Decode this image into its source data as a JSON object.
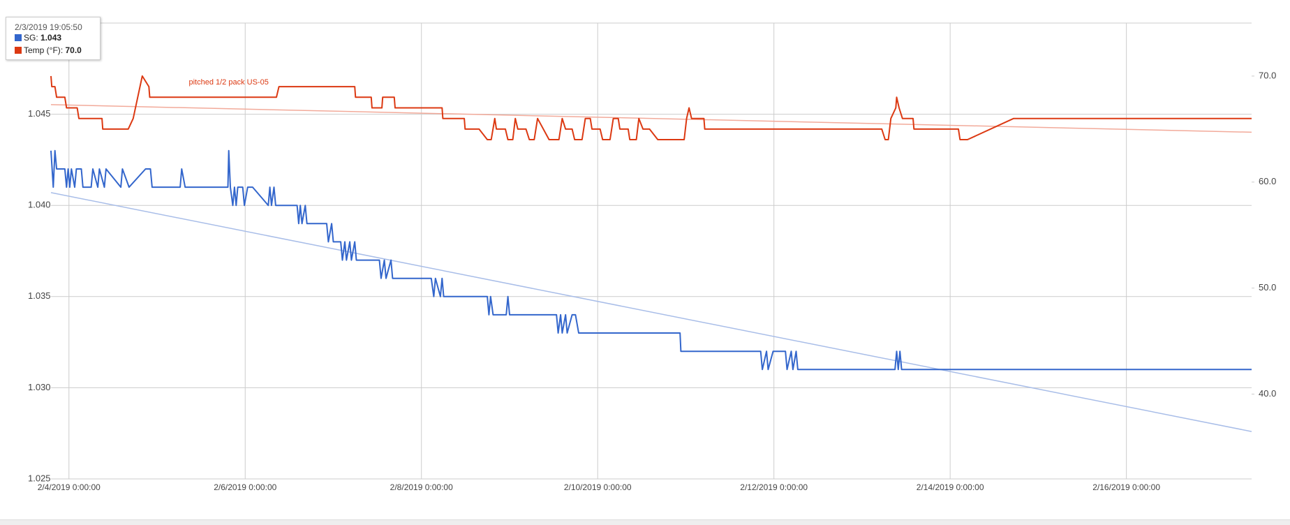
{
  "chart_data": {
    "type": "line",
    "xlim": [
      "2019-02-03T19:06",
      "2019-02-17T10:06"
    ],
    "xticks": [
      {
        "value": "2019-02-04T00:00",
        "label": "2/4/2019 0:00:00"
      },
      {
        "value": "2019-02-06T00:00",
        "label": "2/6/2019 0:00:00"
      },
      {
        "value": "2019-02-08T00:00",
        "label": "2/8/2019 0:00:00"
      },
      {
        "value": "2019-02-10T00:00",
        "label": "2/10/2019 0:00:00"
      },
      {
        "value": "2019-02-12T00:00",
        "label": "2/12/2019 0:00:00"
      },
      {
        "value": "2019-02-14T00:00",
        "label": "2/14/2019 0:00:00"
      },
      {
        "value": "2019-02-16T00:00",
        "label": "2/16/2019 0:00:00"
      }
    ],
    "ylim": [
      1.025,
      1.05
    ],
    "yticks": [
      1.025,
      {
        "value": 1.03,
        "label": "1.030"
      },
      1.035,
      {
        "value": 1.04,
        "label": "1.040"
      },
      1.045
    ],
    "y2lim": [
      32,
      75
    ],
    "y2ticks": [
      {
        "value": 40,
        "label": "40.0"
      },
      {
        "value": 50,
        "label": "50.0"
      },
      {
        "value": 60,
        "label": "60.0"
      },
      {
        "value": 70,
        "label": "70.0"
      }
    ],
    "grid": true,
    "series": [
      {
        "name": "SG",
        "color": "#3366cc",
        "x": [
          "2019-02-03T19:06",
          "2019-02-03T19:44",
          "2019-02-03T20:11",
          "2019-02-03T20:38",
          "2019-02-03T22:53",
          "2019-02-03T23:20",
          "2019-02-03T23:47",
          "2019-02-04T00:13",
          "2019-02-04T00:40",
          "2019-02-04T01:34",
          "2019-02-04T02:01",
          "2019-02-04T03:22",
          "2019-02-04T03:49",
          "2019-02-04T06:03",
          "2019-02-04T06:30",
          "2019-02-04T07:51",
          "2019-02-04T08:18",
          "2019-02-04T09:39",
          "2019-02-04T10:06",
          "2019-02-04T14:08",
          "2019-02-04T14:34",
          "2019-02-04T16:22",
          "2019-02-04T20:52",
          "2019-02-04T22:12",
          "2019-02-04T22:39",
          "2019-02-05T06:17",
          "2019-02-05T06:43",
          "2019-02-05T07:38",
          "2019-02-05T19:18",
          "2019-02-05T19:31",
          "2019-02-05T19:58",
          "2019-02-05T20:38",
          "2019-02-05T21:05",
          "2019-02-05T21:32",
          "2019-02-05T21:59",
          "2019-02-05T23:20",
          "2019-02-05T23:47",
          "2019-02-06T00:40",
          "2019-02-06T02:01",
          "2019-02-06T06:17",
          "2019-02-06T06:43",
          "2019-02-06T07:10",
          "2019-02-06T07:51",
          "2019-02-06T08:18",
          "2019-02-06T14:08",
          "2019-02-06T14:34",
          "2019-02-06T15:01",
          "2019-02-06T15:28",
          "2019-02-06T16:22",
          "2019-02-06T16:49",
          "2019-02-06T22:12",
          "2019-02-06T22:39",
          "2019-02-06T23:33",
          "2019-02-07T00:00",
          "2019-02-07T02:01",
          "2019-02-07T02:28",
          "2019-02-07T03:08",
          "2019-02-07T03:35",
          "2019-02-07T04:29",
          "2019-02-07T04:56",
          "2019-02-07T05:50",
          "2019-02-07T06:17",
          "2019-02-07T12:33",
          "2019-02-07T13:00",
          "2019-02-07T13:54",
          "2019-02-07T14:21",
          "2019-02-07T15:42",
          "2019-02-07T16:09",
          "2019-02-08T02:41",
          "2019-02-08T03:22",
          "2019-02-08T03:49",
          "2019-02-08T05:10",
          "2019-02-08T05:37",
          "2019-02-08T06:03",
          "2019-02-08T17:57",
          "2019-02-08T18:23",
          "2019-02-08T18:50",
          "2019-02-08T19:31",
          "2019-02-08T23:06",
          "2019-02-08T23:33",
          "2019-02-09T00:00",
          "2019-02-09T12:47",
          "2019-02-09T13:14",
          "2019-02-09T13:54",
          "2019-02-09T14:21",
          "2019-02-09T15:15",
          "2019-02-09T15:42",
          "2019-02-09T17:03",
          "2019-02-09T17:57",
          "2019-02-09T18:50",
          "2019-02-10T22:26",
          "2019-02-10T22:40",
          "2019-02-11T20:24",
          "2019-02-11T20:51",
          "2019-02-11T21:59",
          "2019-02-11T22:26",
          "2019-02-11T23:47",
          "2019-02-12T03:08",
          "2019-02-12T03:35",
          "2019-02-12T04:43",
          "2019-02-12T05:10",
          "2019-02-12T06:03",
          "2019-02-12T06:30",
          "2019-02-13T08:58",
          "2019-02-13T09:25",
          "2019-02-13T09:52",
          "2019-02-13T10:19",
          "2019-02-13T10:46",
          "2019-02-17T10:06"
        ],
        "values": [
          1.043,
          1.041,
          1.043,
          1.042,
          1.042,
          1.041,
          1.042,
          1.041,
          1.042,
          1.041,
          1.042,
          1.042,
          1.041,
          1.041,
          1.042,
          1.041,
          1.042,
          1.041,
          1.042,
          1.041,
          1.042,
          1.041,
          1.042,
          1.042,
          1.041,
          1.041,
          1.042,
          1.041,
          1.041,
          1.043,
          1.041,
          1.04,
          1.041,
          1.04,
          1.041,
          1.041,
          1.04,
          1.041,
          1.041,
          1.04,
          1.041,
          1.04,
          1.041,
          1.04,
          1.04,
          1.039,
          1.04,
          1.039,
          1.04,
          1.039,
          1.039,
          1.038,
          1.039,
          1.038,
          1.038,
          1.037,
          1.038,
          1.037,
          1.038,
          1.037,
          1.038,
          1.037,
          1.037,
          1.036,
          1.037,
          1.036,
          1.037,
          1.036,
          1.036,
          1.035,
          1.036,
          1.035,
          1.036,
          1.035,
          1.035,
          1.034,
          1.035,
          1.034,
          1.034,
          1.035,
          1.034,
          1.034,
          1.033,
          1.034,
          1.033,
          1.034,
          1.033,
          1.034,
          1.034,
          1.033,
          1.033,
          1.032,
          1.032,
          1.031,
          1.032,
          1.031,
          1.032,
          1.032,
          1.031,
          1.032,
          1.031,
          1.032,
          1.031,
          1.031,
          1.032,
          1.031,
          1.032,
          1.031,
          1.031
        ]
      },
      {
        "name": "Temp (°F)",
        "color": "#dc3912",
        "axis": "y2",
        "x": [
          "2019-02-03T19:06",
          "2019-02-03T19:20",
          "2019-02-03T20:11",
          "2019-02-03T20:38",
          "2019-02-03T22:53",
          "2019-02-03T23:20",
          "2019-02-04T02:15",
          "2019-02-04T02:42",
          "2019-02-04T09:00",
          "2019-02-04T09:12",
          "2019-02-04T16:09",
          "2019-02-04T17:30",
          "2019-02-04T19:58",
          "2019-02-04T21:46",
          "2019-02-04T22:00",
          "2019-02-06T08:31",
          "2019-02-06T09:12",
          "2019-02-07T05:50",
          "2019-02-07T06:03",
          "2019-02-07T10:19",
          "2019-02-07T10:32",
          "2019-02-07T13:14",
          "2019-02-07T13:27",
          "2019-02-07T16:36",
          "2019-02-07T16:50",
          "2019-02-08T05:37",
          "2019-02-08T05:50",
          "2019-02-08T11:40",
          "2019-02-08T11:54",
          "2019-02-08T15:42",
          "2019-02-08T17:57",
          "2019-02-08T19:00",
          "2019-02-08T19:58",
          "2019-02-08T20:25",
          "2019-02-08T22:52",
          "2019-02-08T23:33",
          "2019-02-09T00:53",
          "2019-02-09T01:34",
          "2019-02-09T02:15",
          "2019-02-09T04:29",
          "2019-02-09T05:23",
          "2019-02-09T06:43",
          "2019-02-09T07:38",
          "2019-02-09T10:46",
          "2019-02-09T13:27",
          "2019-02-09T14:21",
          "2019-02-09T15:15",
          "2019-02-09T17:03",
          "2019-02-09T17:43",
          "2019-02-09T19:44",
          "2019-02-09T20:38",
          "2019-02-09T21:59",
          "2019-02-09T22:26",
          "2019-02-10T00:40",
          "2019-02-10T01:21",
          "2019-02-10T03:22",
          "2019-02-10T04:16",
          "2019-02-10T05:37",
          "2019-02-10T06:03",
          "2019-02-10T08:18",
          "2019-02-10T08:45",
          "2019-02-10T10:32",
          "2019-02-10T11:13",
          "2019-02-10T12:20",
          "2019-02-10T14:08",
          "2019-02-10T16:22",
          "2019-02-10T23:33",
          "2019-02-11T00:13",
          "2019-02-11T00:53",
          "2019-02-11T01:34",
          "2019-02-11T04:56",
          "2019-02-11T05:10",
          "2019-02-13T05:23",
          "2019-02-13T06:17",
          "2019-02-13T07:10",
          "2019-02-13T07:51",
          "2019-02-13T09:12",
          "2019-02-13T09:25",
          "2019-02-13T10:06",
          "2019-02-13T11:00",
          "2019-02-13T13:54",
          "2019-02-13T14:08",
          "2019-02-14T02:15",
          "2019-02-14T02:41",
          "2019-02-14T04:43",
          "2019-02-14T17:17",
          "2019-02-17T10:06"
        ],
        "values": [
          70,
          69,
          69,
          68,
          68,
          67,
          67,
          66,
          66,
          65,
          65,
          66,
          70,
          69,
          68,
          68,
          69,
          69,
          68,
          68,
          67,
          67,
          68,
          68,
          67,
          67,
          66,
          66,
          65,
          65,
          64,
          64,
          66,
          65,
          65,
          64,
          64,
          66,
          65,
          65,
          64,
          64,
          66,
          64,
          64,
          66,
          65,
          65,
          64,
          64,
          66,
          66,
          65,
          65,
          64,
          64,
          66,
          66,
          65,
          65,
          64,
          64,
          66,
          65,
          65,
          64,
          64,
          66,
          67,
          66,
          66,
          65,
          65,
          64,
          64,
          66,
          67,
          68,
          67,
          66,
          66,
          65,
          65,
          64,
          64,
          66,
          66
        ]
      }
    ],
    "trendlines": [
      {
        "color": "#a8bde8",
        "x": [
          "2019-02-03T19:06",
          "2019-02-17T10:06"
        ],
        "values": [
          1.0407,
          1.0276
        ]
      },
      {
        "color": "#f2aa9a",
        "axis": "y2",
        "x": [
          "2019-02-03T19:06",
          "2019-02-17T10:06"
        ],
        "values": [
          67.3,
          64.7
        ]
      }
    ],
    "annotation": {
      "text": "pitched 1/2 pack US-05",
      "x": "2019-02-05T19:31",
      "value": 68,
      "axis": "y2",
      "color": "#dc3912"
    },
    "tooltip": {
      "title": "2/3/2019 19:05:50",
      "values": [
        1.043,
        70
      ],
      "value_labels": [
        "1.043",
        "70.0"
      ]
    }
  }
}
